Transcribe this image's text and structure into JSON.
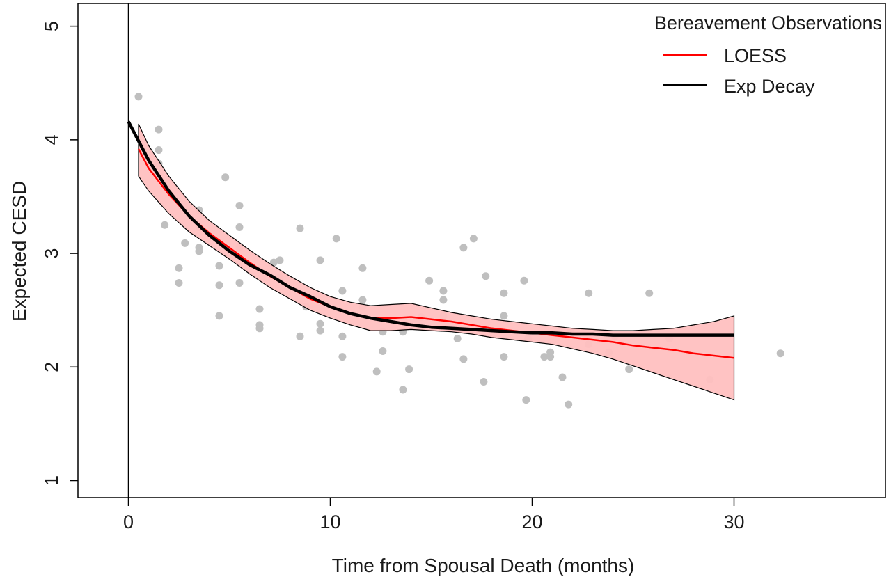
{
  "chart_data": {
    "type": "scatter",
    "title": "",
    "xlabel": "Time from Spousal Death (months)",
    "ylabel": "Expected CESD",
    "xlim": [
      -2.5,
      37.5
    ],
    "ylim": [
      0.85,
      5.2
    ],
    "x_ticks": [
      0,
      10,
      20,
      30
    ],
    "y_ticks": [
      1,
      2,
      3,
      4,
      5
    ],
    "x_tick_labels": [
      "0",
      "10",
      "20",
      "30"
    ],
    "y_tick_labels": [
      "1",
      "2",
      "3",
      "4",
      "5"
    ],
    "vline_x": 0,
    "legend": {
      "title": "Bereavement Observations",
      "placement": "top-right",
      "entries": [
        {
          "label": "LOESS",
          "color": "#ff0000"
        },
        {
          "label": "Exp Decay",
          "color": "#000000"
        }
      ]
    },
    "colors": {
      "points": "#bfbfbf",
      "loess_line": "#ff0000",
      "band_fill": "#ffc0c0",
      "band_stroke": "#000000",
      "exp_line": "#000000"
    },
    "points": [
      {
        "x": 0.5,
        "y": 4.38
      },
      {
        "x": 1.5,
        "y": 4.09
      },
      {
        "x": 1.5,
        "y": 3.91
      },
      {
        "x": 1.5,
        "y": 3.79
      },
      {
        "x": 1.8,
        "y": 3.25
      },
      {
        "x": 2.5,
        "y": 2.87
      },
      {
        "x": 2.5,
        "y": 2.74
      },
      {
        "x": 2.8,
        "y": 3.09
      },
      {
        "x": 3.5,
        "y": 3.38
      },
      {
        "x": 3.5,
        "y": 3.23
      },
      {
        "x": 3.5,
        "y": 3.05
      },
      {
        "x": 3.5,
        "y": 3.02
      },
      {
        "x": 4.5,
        "y": 2.89
      },
      {
        "x": 4.5,
        "y": 2.72
      },
      {
        "x": 4.5,
        "y": 2.45
      },
      {
        "x": 4.8,
        "y": 3.67
      },
      {
        "x": 5.5,
        "y": 3.42
      },
      {
        "x": 5.5,
        "y": 3.23
      },
      {
        "x": 5.5,
        "y": 3.05
      },
      {
        "x": 5.5,
        "y": 2.74
      },
      {
        "x": 6.5,
        "y": 2.51
      },
      {
        "x": 6.5,
        "y": 2.37
      },
      {
        "x": 6.5,
        "y": 2.34
      },
      {
        "x": 7.2,
        "y": 2.92
      },
      {
        "x": 7.5,
        "y": 2.94
      },
      {
        "x": 7.5,
        "y": 2.79
      },
      {
        "x": 8.5,
        "y": 3.22
      },
      {
        "x": 8.5,
        "y": 2.27
      },
      {
        "x": 8.8,
        "y": 2.53
      },
      {
        "x": 9.5,
        "y": 2.94
      },
      {
        "x": 9.5,
        "y": 2.32
      },
      {
        "x": 9.5,
        "y": 2.38
      },
      {
        "x": 10.3,
        "y": 3.13
      },
      {
        "x": 10.6,
        "y": 2.67
      },
      {
        "x": 10.6,
        "y": 2.27
      },
      {
        "x": 10.6,
        "y": 2.09
      },
      {
        "x": 11.6,
        "y": 2.87
      },
      {
        "x": 11.6,
        "y": 2.53
      },
      {
        "x": 11.6,
        "y": 2.59
      },
      {
        "x": 12.3,
        "y": 1.96
      },
      {
        "x": 12.6,
        "y": 2.14
      },
      {
        "x": 12.6,
        "y": 2.31
      },
      {
        "x": 13.6,
        "y": 2.31
      },
      {
        "x": 13.6,
        "y": 1.8
      },
      {
        "x": 13.9,
        "y": 1.98
      },
      {
        "x": 14.5,
        "y": 2.44
      },
      {
        "x": 14.9,
        "y": 2.76
      },
      {
        "x": 15.6,
        "y": 2.67
      },
      {
        "x": 15.6,
        "y": 2.59
      },
      {
        "x": 15.6,
        "y": 2.45
      },
      {
        "x": 16.3,
        "y": 2.25
      },
      {
        "x": 16.6,
        "y": 3.05
      },
      {
        "x": 16.6,
        "y": 2.07
      },
      {
        "x": 17.1,
        "y": 3.13
      },
      {
        "x": 17.6,
        "y": 1.87
      },
      {
        "x": 17.7,
        "y": 2.8
      },
      {
        "x": 18.6,
        "y": 2.65
      },
      {
        "x": 18.6,
        "y": 2.45
      },
      {
        "x": 18.6,
        "y": 2.09
      },
      {
        "x": 19.6,
        "y": 2.76
      },
      {
        "x": 19.7,
        "y": 1.71
      },
      {
        "x": 19.8,
        "y": 2.25
      },
      {
        "x": 20.6,
        "y": 2.09
      },
      {
        "x": 20.9,
        "y": 2.09
      },
      {
        "x": 20.9,
        "y": 2.13
      },
      {
        "x": 21.5,
        "y": 1.91
      },
      {
        "x": 21.8,
        "y": 1.67
      },
      {
        "x": 21.9,
        "y": 2.31
      },
      {
        "x": 22.8,
        "y": 2.65
      },
      {
        "x": 22.8,
        "y": 2.2
      },
      {
        "x": 23.8,
        "y": 2.13
      },
      {
        "x": 24.1,
        "y": 2.27
      },
      {
        "x": 24.8,
        "y": 1.98
      },
      {
        "x": 25.8,
        "y": 2.65
      },
      {
        "x": 26.8,
        "y": 2.25
      },
      {
        "x": 28.8,
        "y": 1.89
      },
      {
        "x": 32.3,
        "y": 2.12
      }
    ],
    "exp_decay": {
      "x": [
        0,
        1,
        2,
        3,
        4,
        5,
        6,
        7,
        8,
        9,
        10,
        11,
        12,
        13,
        14,
        15,
        16,
        17,
        18,
        19,
        20,
        21,
        22,
        23,
        24,
        25,
        26,
        27,
        28,
        29,
        30
      ],
      "y": [
        4.16,
        3.82,
        3.55,
        3.33,
        3.16,
        3.02,
        2.9,
        2.81,
        2.7,
        2.62,
        2.53,
        2.47,
        2.43,
        2.4,
        2.37,
        2.35,
        2.34,
        2.33,
        2.32,
        2.31,
        2.3,
        2.3,
        2.29,
        2.29,
        2.28,
        2.28,
        2.28,
        2.28,
        2.28,
        2.28,
        2.28
      ]
    },
    "loess": {
      "x": [
        0.5,
        1,
        2,
        3,
        4,
        5,
        6,
        7,
        8,
        9,
        10,
        11,
        12,
        13,
        14,
        15,
        16,
        17,
        18,
        19,
        20,
        21,
        22,
        23,
        24,
        25,
        26,
        27,
        28,
        29,
        30
      ],
      "y": [
        3.92,
        3.75,
        3.52,
        3.33,
        3.18,
        3.05,
        2.92,
        2.8,
        2.7,
        2.6,
        2.53,
        2.47,
        2.43,
        2.43,
        2.44,
        2.42,
        2.4,
        2.37,
        2.34,
        2.32,
        2.3,
        2.28,
        2.26,
        2.24,
        2.22,
        2.19,
        2.17,
        2.15,
        2.12,
        2.1,
        2.08
      ]
    },
    "band": {
      "x": [
        0.5,
        1,
        2,
        3,
        4,
        5,
        6,
        7,
        8,
        9,
        10,
        11,
        12,
        13,
        14,
        15,
        16,
        17,
        18,
        19,
        20,
        21,
        22,
        23,
        24,
        25,
        26,
        27,
        28,
        29,
        30
      ],
      "upper": [
        4.14,
        3.95,
        3.68,
        3.46,
        3.29,
        3.16,
        3.03,
        2.91,
        2.8,
        2.7,
        2.62,
        2.57,
        2.54,
        2.55,
        2.56,
        2.52,
        2.48,
        2.45,
        2.42,
        2.4,
        2.38,
        2.36,
        2.34,
        2.33,
        2.32,
        2.32,
        2.33,
        2.34,
        2.37,
        2.4,
        2.45
      ],
      "lower": [
        3.68,
        3.55,
        3.35,
        3.19,
        3.07,
        2.95,
        2.82,
        2.7,
        2.6,
        2.5,
        2.43,
        2.37,
        2.32,
        2.32,
        2.33,
        2.32,
        2.31,
        2.29,
        2.26,
        2.24,
        2.22,
        2.2,
        2.16,
        2.12,
        2.07,
        2.01,
        1.95,
        1.89,
        1.83,
        1.77,
        1.71
      ]
    }
  }
}
